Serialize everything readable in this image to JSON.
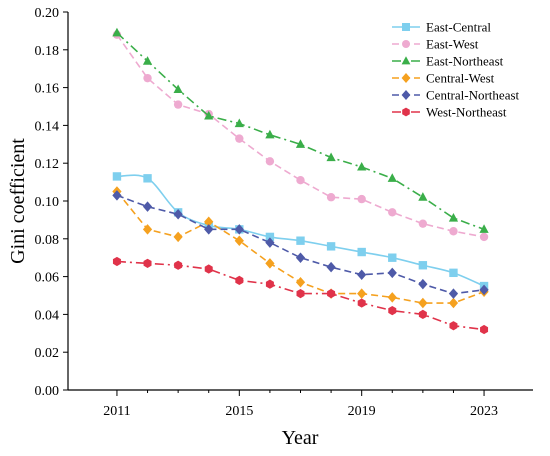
{
  "chart_data": {
    "type": "line",
    "title": "",
    "xlabel": "Year",
    "ylabel": "Gini coefficient",
    "xlim": [
      2009.4,
      2024.6
    ],
    "ylim": [
      0,
      0.2
    ],
    "xticks": [
      "2011",
      "2015",
      "2019",
      "2023"
    ],
    "yticks": [
      "0.00",
      "0.02",
      "0.04",
      "0.06",
      "0.08",
      "0.10",
      "0.12",
      "0.14",
      "0.16",
      "0.18",
      "0.20"
    ],
    "legend_position": "top-right",
    "x": [
      2011,
      2012,
      2013,
      2014,
      2015,
      2016,
      2017,
      2018,
      2019,
      2020,
      2021,
      2022,
      2023
    ],
    "series": [
      {
        "name": "East-Central",
        "color": "#7ecfee",
        "marker": "square",
        "line": "solid",
        "values": [
          0.113,
          0.112,
          0.094,
          0.087,
          0.085,
          0.081,
          0.079,
          0.076,
          0.073,
          0.07,
          0.066,
          0.062,
          0.055
        ]
      },
      {
        "name": "East-West",
        "color": "#eeaad0",
        "marker": "circle",
        "line": "dashed",
        "values": [
          0.188,
          0.165,
          0.151,
          0.146,
          0.133,
          0.121,
          0.111,
          0.102,
          0.101,
          0.094,
          0.088,
          0.084,
          0.081
        ]
      },
      {
        "name": "East-Northeast",
        "color": "#3aae49",
        "marker": "triangle",
        "line": "dashdot",
        "values": [
          0.189,
          0.174,
          0.159,
          0.145,
          0.141,
          0.135,
          0.13,
          0.123,
          0.118,
          0.112,
          0.102,
          0.091,
          0.085
        ]
      },
      {
        "name": "Central-West",
        "color": "#f5a11f",
        "marker": "diamond",
        "line": "dashed",
        "values": [
          0.105,
          0.085,
          0.081,
          0.089,
          0.079,
          0.067,
          0.057,
          0.051,
          0.051,
          0.049,
          0.046,
          0.046,
          0.052
        ]
      },
      {
        "name": "Central-Northeast",
        "color": "#4e5aa8",
        "marker": "diamond",
        "line": "dashed",
        "values": [
          0.103,
          0.097,
          0.093,
          0.085,
          0.085,
          0.078,
          0.07,
          0.065,
          0.061,
          0.062,
          0.056,
          0.051,
          0.053
        ]
      },
      {
        "name": "West-Northeast",
        "color": "#e0334a",
        "marker": "hexagon",
        "line": "dashdot",
        "values": [
          0.068,
          0.067,
          0.066,
          0.064,
          0.058,
          0.056,
          0.051,
          0.051,
          0.046,
          0.042,
          0.04,
          0.034,
          0.032
        ]
      }
    ]
  }
}
